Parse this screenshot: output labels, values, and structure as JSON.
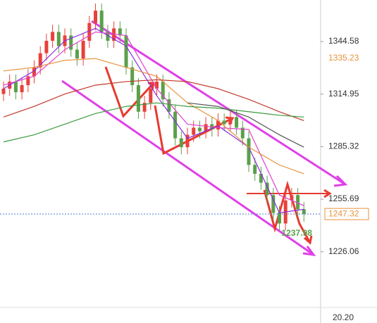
{
  "chart_data": {
    "type": "candlestick",
    "ylim": [
      1195.4,
      1368
    ],
    "yticks": [
      1226.06,
      1255.69,
      1285.32,
      1314.95,
      1344.58
    ],
    "up_color": "#e8413a",
    "down_color": "#5aa04a",
    "open": [
      1315,
      1318,
      1322,
      1316,
      1320,
      1325,
      1330,
      1338,
      1345,
      1350,
      1342,
      1348,
      1340,
      1335,
      1345,
      1355,
      1362,
      1350,
      1345,
      1352,
      1348,
      1330,
      1320,
      1305,
      1310,
      1318,
      1322,
      1312,
      1305,
      1290,
      1285,
      1292,
      1296,
      1294,
      1298,
      1295,
      1300,
      1298,
      1302,
      1296,
      1290,
      1275,
      1270,
      1265,
      1258,
      1248,
      1242,
      1255,
      1258,
      1250
    ],
    "high": [
      1322,
      1326,
      1326,
      1324,
      1329,
      1334,
      1342,
      1349,
      1354,
      1354,
      1352,
      1352,
      1344,
      1349,
      1359,
      1366,
      1366,
      1354,
      1356,
      1356,
      1352,
      1334,
      1324,
      1314,
      1322,
      1326,
      1326,
      1316,
      1309,
      1294,
      1296,
      1300,
      1300,
      1302,
      1302,
      1304,
      1304,
      1306,
      1306,
      1300,
      1294,
      1279,
      1274,
      1269,
      1262,
      1252,
      1259,
      1262,
      1262,
      1254
    ],
    "low": [
      1311,
      1314,
      1312,
      1312,
      1316,
      1321,
      1326,
      1334,
      1341,
      1338,
      1338,
      1336,
      1331,
      1331,
      1341,
      1351,
      1346,
      1341,
      1341,
      1344,
      1326,
      1316,
      1301,
      1301,
      1306,
      1314,
      1308,
      1301,
      1286,
      1281,
      1281,
      1288,
      1290,
      1290,
      1291,
      1291,
      1294,
      1294,
      1292,
      1286,
      1271,
      1266,
      1261,
      1254,
      1244,
      1237.98,
      1238,
      1251,
      1246,
      1243
    ],
    "close": [
      1318,
      1322,
      1316,
      1320,
      1325,
      1330,
      1338,
      1345,
      1350,
      1342,
      1348,
      1340,
      1335,
      1345,
      1355,
      1362,
      1350,
      1345,
      1352,
      1348,
      1330,
      1320,
      1305,
      1310,
      1318,
      1322,
      1312,
      1305,
      1290,
      1285,
      1292,
      1296,
      1294,
      1298,
      1295,
      1300,
      1298,
      1302,
      1296,
      1290,
      1275,
      1270,
      1265,
      1258,
      1248,
      1242,
      1255,
      1258,
      1250,
      1247.32
    ],
    "lines": [
      {
        "color": "#8a2be2",
        "x": [
          0,
          5,
          10,
          15,
          20,
          25,
          30,
          35,
          40,
          45,
          49
        ],
        "values": [
          1318,
          1328,
          1345,
          1352,
          1342,
          1314,
          1290,
          1297,
          1285,
          1248,
          1250
        ]
      },
      {
        "color": "#e040d0",
        "x": [
          0,
          5,
          10,
          15,
          20,
          25,
          30,
          35,
          40,
          45,
          49
        ],
        "values": [
          1320,
          1325,
          1340,
          1350,
          1348,
          1318,
          1298,
          1296,
          1295,
          1258,
          1252
        ]
      },
      {
        "color": "#e8923c",
        "x": [
          0,
          5,
          10,
          15,
          20,
          25,
          30,
          35,
          40,
          45,
          49
        ],
        "values": [
          1328,
          1330,
          1334,
          1335,
          1330,
          1325,
          1310,
          1300,
          1285,
          1275,
          1270
        ]
      },
      {
        "color": "#c0392b",
        "x": [
          0,
          5,
          10,
          15,
          20,
          25,
          30,
          35,
          40,
          45,
          49
        ],
        "values": [
          1302,
          1308,
          1315,
          1320,
          1322,
          1323,
          1322,
          1318,
          1312,
          1305,
          1300
        ]
      },
      {
        "color": "#3c9a3c",
        "x": [
          0,
          5,
          10,
          15,
          20,
          25,
          30,
          35,
          40,
          45,
          49
        ],
        "values": [
          1288,
          1292,
          1298,
          1304,
          1308,
          1310,
          1308,
          1307,
          1305,
          1303,
          1302
        ]
      },
      {
        "color": "#555555",
        "x": [
          30,
          35,
          40,
          45,
          49
        ],
        "values": [
          1310,
          1308,
          1302,
          1292,
          1285
        ]
      }
    ],
    "markers": [
      {
        "value": 1335.23,
        "color": "#e8923c"
      },
      {
        "value": 1247.32,
        "color": "#e8923c"
      }
    ],
    "volume_ticks": [
      {
        "value": 20.2,
        "label": "20.20"
      }
    ]
  }
}
